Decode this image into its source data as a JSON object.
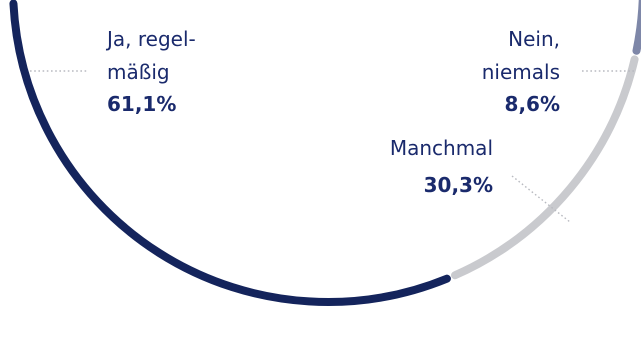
{
  "chart_data": {
    "type": "pie",
    "variant": "partial-ring",
    "title": "",
    "categories": [
      "Ja, regelmäßig",
      "Nein, niemals",
      "Manchmal"
    ],
    "values": [
      61.1,
      8.6,
      30.3
    ],
    "unit": "%",
    "slices": [
      {
        "label_lines": [
          "Ja, regel-",
          "mäßig"
        ],
        "value_text": "61,1%",
        "value": 61.1,
        "color": "#14245c",
        "label_side": "left"
      },
      {
        "label_lines": [
          "Nein,",
          "niemals"
        ],
        "value_text": "8,6%",
        "value": 8.6,
        "color": "#7e87a8",
        "label_side": "right"
      },
      {
        "label_lines": [
          "Manchmal"
        ],
        "value_text": "30,3%",
        "value": 30.3,
        "color": "#c9cace",
        "label_side": "right"
      }
    ],
    "legend": "none",
    "grid": false
  },
  "colors": {
    "label_text": "#1a2a6c",
    "leader_line": "#b8bac0"
  }
}
